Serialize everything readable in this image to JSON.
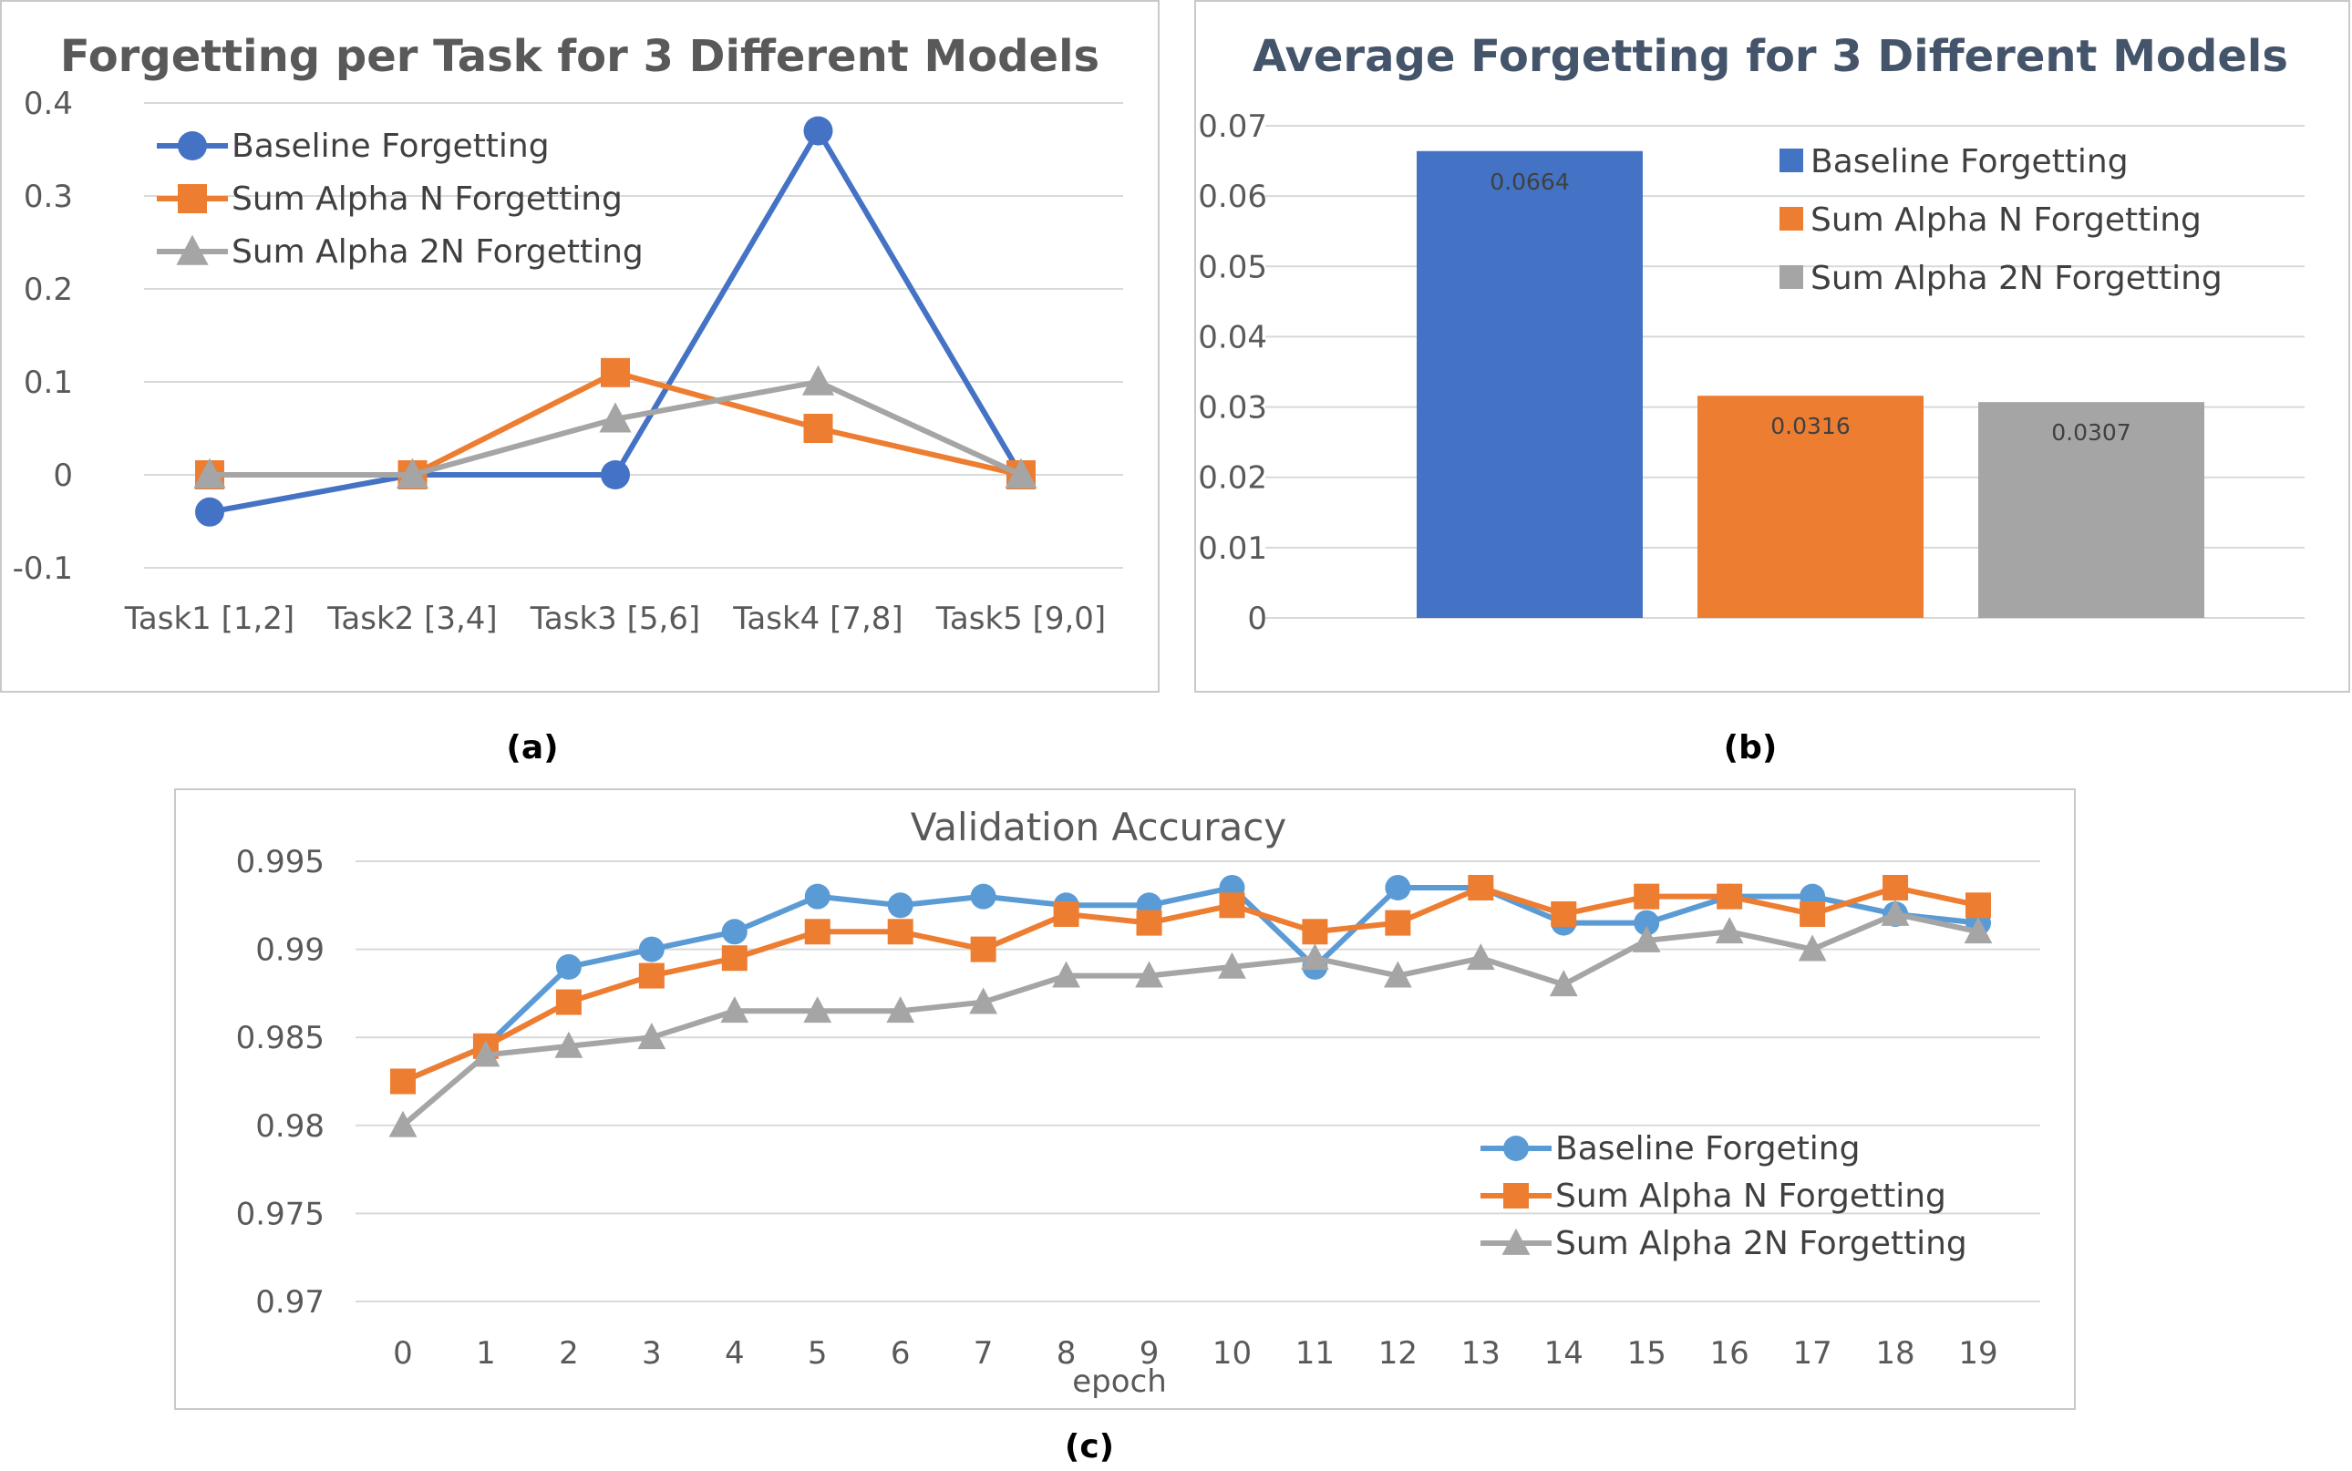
{
  "panels": {
    "a": "(a)",
    "b": "(b)",
    "c": "(c)"
  },
  "chart_data": [
    {
      "id": "a",
      "type": "line",
      "title": "Forgetting per Task for 3 Different Models",
      "categories": [
        "Task1 [1,2]",
        "Task2 [3,4]",
        "Task3 [5,6]",
        "Task4 [7,8]",
        "Task5 [9,0]"
      ],
      "series": [
        {
          "name": "Baseline Forgetting",
          "values": [
            -0.04,
            0,
            0,
            0.37,
            0
          ],
          "color": "#4472c4",
          "marker": "circle"
        },
        {
          "name": "Sum Alpha N Forgetting",
          "values": [
            0,
            0,
            0.11,
            0.05,
            0
          ],
          "color": "#ed7d31",
          "marker": "square"
        },
        {
          "name": "Sum Alpha 2N Forgetting",
          "values": [
            0,
            0,
            0.06,
            0.1,
            0
          ],
          "color": "#a5a5a5",
          "marker": "triangle"
        }
      ],
      "yticks": [
        "0.4",
        "0.3",
        "0.2",
        "0.1",
        "0",
        "-0.1"
      ],
      "ylim": [
        -0.1,
        0.4
      ],
      "grid": true,
      "legend": "top-left"
    },
    {
      "id": "b",
      "type": "bar",
      "title": "Average Forgetting for 3 Different Models",
      "categories": [
        "Baseline Forgetting",
        "Sum Alpha N Forgetting",
        "Sum Alpha 2N Forgetting"
      ],
      "values": [
        0.0664,
        0.0316,
        0.0307
      ],
      "data_labels": [
        "0.0664",
        "0.0316",
        "0.0307"
      ],
      "colors": [
        "#4472c4",
        "#ed7d31",
        "#a5a5a5"
      ],
      "yticks": [
        "0.07",
        "0.06",
        "0.05",
        "0.04",
        "0.03",
        "0.02",
        "0.01",
        "0"
      ],
      "ylim": [
        0,
        0.07
      ],
      "grid": true,
      "legend": "top-right"
    },
    {
      "id": "c",
      "type": "line",
      "title": "Validation Accuracy",
      "xlabel": "epoch",
      "categories": [
        "0",
        "1",
        "2",
        "3",
        "4",
        "5",
        "6",
        "7",
        "8",
        "9",
        "10",
        "11",
        "12",
        "13",
        "14",
        "15",
        "16",
        "17",
        "18",
        "19"
      ],
      "series": [
        {
          "name": "Baseline Forgeting",
          "color": "#5b9bd5",
          "marker": "circle",
          "values": [
            0.9825,
            0.9845,
            0.989,
            0.99,
            0.991,
            0.993,
            0.9925,
            0.993,
            0.9925,
            0.9925,
            0.9935,
            0.989,
            0.9935,
            0.9935,
            0.9915,
            0.9915,
            0.993,
            0.993,
            0.992,
            0.9915
          ]
        },
        {
          "name": "Sum Alpha N Forgetting",
          "color": "#ed7d31",
          "marker": "square",
          "values": [
            0.9825,
            0.9845,
            0.987,
            0.9885,
            0.9895,
            0.991,
            0.991,
            0.99,
            0.992,
            0.9915,
            0.9925,
            0.991,
            0.9915,
            0.9935,
            0.992,
            0.993,
            0.993,
            0.992,
            0.9935,
            0.9925
          ]
        },
        {
          "name": "Sum Alpha 2N Forgetting",
          "color": "#a5a5a5",
          "marker": "triangle",
          "values": [
            0.98,
            0.984,
            0.9845,
            0.985,
            0.9865,
            0.9865,
            0.9865,
            0.987,
            0.9885,
            0.9885,
            0.989,
            0.9895,
            0.9885,
            0.9895,
            0.988,
            0.9905,
            0.991,
            0.99,
            0.992,
            0.991
          ]
        }
      ],
      "yticks": [
        "0.995",
        "0.99",
        "0.985",
        "0.98",
        "0.975",
        "0.97"
      ],
      "ylim": [
        0.97,
        0.995
      ],
      "grid": true,
      "legend": "bottom-right"
    }
  ]
}
